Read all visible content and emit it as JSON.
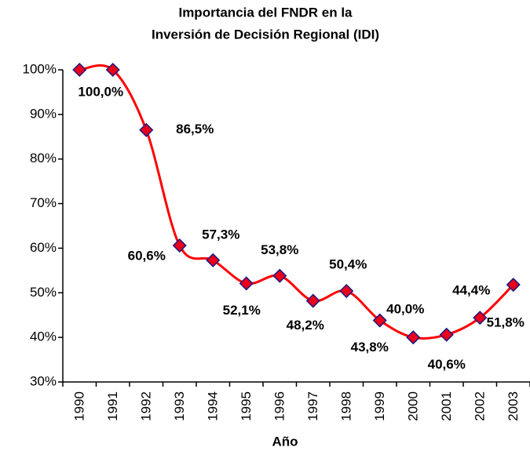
{
  "chart_data": {
    "type": "line",
    "title": "Importancia del FNDR en la",
    "subtitle": "Inversión de Decisión Regional (IDI)",
    "x_label": "Año",
    "categories": [
      "1990",
      "1991",
      "1992",
      "1993",
      "1994",
      "1995",
      "1996",
      "1997",
      "1998",
      "1999",
      "2000",
      "2001",
      "2002",
      "2003"
    ],
    "series": [
      {
        "name": null,
        "color": "#ff0000",
        "marker_fill": "#e8001c",
        "marker_stroke": "#1a1a80",
        "values": [
          100,
          100,
          86.5,
          60.6,
          57.3,
          52.1,
          53.8,
          48.2,
          50.4,
          43.8,
          40.0,
          40.6,
          44.4,
          51.8
        ],
        "value_labels": [
          "100,0%",
          null,
          "86,5%",
          "60,6%",
          "57,3%",
          "52,1%",
          "53,8%",
          "48,2%",
          "50,4%",
          "43,8%",
          "40,0%",
          "40,6%",
          "44,4%",
          "51,8%"
        ]
      }
    ],
    "ylim": [
      30,
      100
    ],
    "yticks": [
      {
        "value": 30,
        "label": "30%"
      },
      {
        "value": 40,
        "label": "40%"
      },
      {
        "value": 50,
        "label": "50%"
      },
      {
        "value": 60,
        "label": "60%"
      },
      {
        "value": 70,
        "label": "70%"
      },
      {
        "value": 80,
        "label": "80%"
      },
      {
        "value": 90,
        "label": "90%"
      },
      {
        "value": 100,
        "label": "100%"
      }
    ],
    "grid": false
  }
}
